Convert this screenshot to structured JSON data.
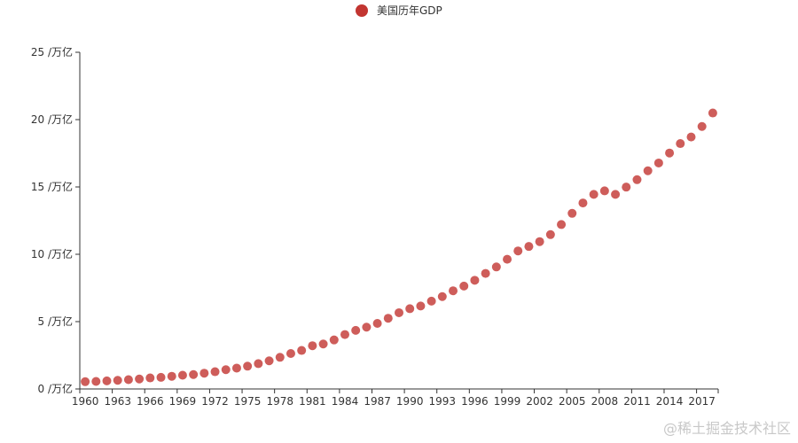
{
  "chart_data": {
    "type": "scatter",
    "title": "",
    "xlabel": "",
    "ylabel": "",
    "legend": {
      "position": "top-center",
      "entries": [
        "美国历年GDP"
      ]
    },
    "series": [
      {
        "name": "美国历年GDP",
        "color": "#c23531",
        "x": [
          1960,
          1961,
          1962,
          1963,
          1964,
          1965,
          1966,
          1967,
          1968,
          1969,
          1970,
          1971,
          1972,
          1973,
          1974,
          1975,
          1976,
          1977,
          1978,
          1979,
          1980,
          1981,
          1982,
          1983,
          1984,
          1985,
          1986,
          1987,
          1988,
          1989,
          1990,
          1991,
          1992,
          1993,
          1994,
          1995,
          1996,
          1997,
          1998,
          1999,
          2000,
          2001,
          2002,
          2003,
          2004,
          2005,
          2006,
          2007,
          2008,
          2009,
          2010,
          2011,
          2012,
          2013,
          2014,
          2015,
          2016,
          2017,
          2018
        ],
        "y": [
          0.54,
          0.56,
          0.6,
          0.64,
          0.69,
          0.74,
          0.82,
          0.86,
          0.94,
          1.02,
          1.07,
          1.17,
          1.28,
          1.43,
          1.55,
          1.69,
          1.88,
          2.09,
          2.35,
          2.63,
          2.86,
          3.21,
          3.34,
          3.64,
          4.04,
          4.35,
          4.59,
          4.87,
          5.25,
          5.66,
          5.96,
          6.16,
          6.52,
          6.86,
          7.29,
          7.64,
          8.07,
          8.58,
          9.06,
          9.63,
          10.25,
          10.58,
          10.94,
          11.46,
          12.21,
          13.04,
          13.81,
          14.45,
          14.71,
          14.45,
          14.99,
          15.54,
          16.2,
          16.78,
          17.52,
          18.22,
          18.71,
          19.49,
          20.49
        ]
      }
    ],
    "x_axis": {
      "ticks": [
        1960,
        1963,
        1966,
        1969,
        1972,
        1975,
        1978,
        1981,
        1984,
        1987,
        1990,
        1993,
        1996,
        1999,
        2002,
        2005,
        2008,
        2011,
        2014,
        2017
      ],
      "range": [
        1960,
        2018
      ]
    },
    "y_axis": {
      "ticks": [
        0,
        5,
        10,
        15,
        20,
        25
      ],
      "unit_suffix": " /万亿",
      "range": [
        0,
        25
      ]
    },
    "grid": false
  },
  "watermark": "@稀土掘金技术社区"
}
